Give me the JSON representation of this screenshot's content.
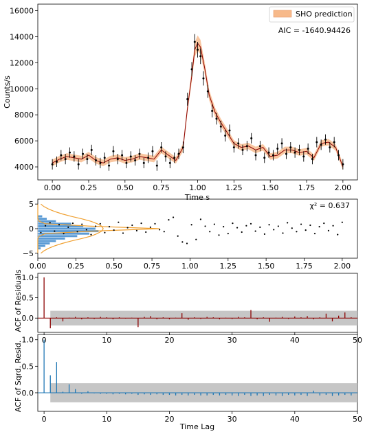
{
  "colors": {
    "model_line": "#8b0000",
    "model_band": "#f7b98a",
    "data_points": "#000000",
    "hist_fill": "#5b9bd5",
    "hist_lines": "#4a8ac4",
    "gaussian": "#f0a030",
    "acf_resid": "#8b0000",
    "acf_sq": "#1f77b4",
    "conf_band": "#c0c0c0"
  },
  "chart_data": [
    {
      "type": "scatter",
      "ylabel": "Counts/s",
      "xlabel": "Time s",
      "xlim": [
        -0.1,
        2.1
      ],
      "ylim": [
        3000,
        16500
      ],
      "x_ticks": [
        "0.00",
        "0.25",
        "0.50",
        "0.75",
        "1.00",
        "1.25",
        "1.50",
        "1.75",
        "2.00"
      ],
      "x_tick_values": [
        0,
        0.25,
        0.5,
        0.75,
        1.0,
        1.25,
        1.5,
        1.75,
        2.0
      ],
      "y_ticks": [
        "4000",
        "6000",
        "8000",
        "10000",
        "12000",
        "14000",
        "16000"
      ],
      "y_tick_values": [
        4000,
        6000,
        8000,
        10000,
        12000,
        14000,
        16000
      ],
      "legend": "SHO prediction",
      "annotation": "AIC = -1640.94426",
      "model": {
        "x": [
          0.0,
          0.05,
          0.1,
          0.15,
          0.2,
          0.25,
          0.3,
          0.35,
          0.4,
          0.45,
          0.5,
          0.55,
          0.6,
          0.65,
          0.7,
          0.75,
          0.8,
          0.85,
          0.9,
          0.93,
          0.96,
          0.98,
          1.0,
          1.02,
          1.05,
          1.08,
          1.12,
          1.16,
          1.2,
          1.25,
          1.3,
          1.35,
          1.4,
          1.45,
          1.5,
          1.55,
          1.6,
          1.65,
          1.7,
          1.75,
          1.8,
          1.85,
          1.9,
          1.95,
          2.0
        ],
        "y": [
          4300,
          4600,
          4800,
          4700,
          4600,
          4900,
          4500,
          4300,
          4600,
          4700,
          4500,
          4600,
          4800,
          4700,
          4600,
          5300,
          4900,
          4500,
          5500,
          8500,
          11000,
          13000,
          13500,
          13200,
          11500,
          9500,
          8200,
          7400,
          6700,
          5800,
          5500,
          5600,
          5300,
          5500,
          4800,
          4900,
          5300,
          5300,
          5100,
          5200,
          4700,
          5800,
          5900,
          5500,
          4000
        ],
        "band_halfwidth": [
          250,
          250,
          250,
          250,
          250,
          250,
          250,
          250,
          250,
          250,
          250,
          250,
          250,
          250,
          250,
          250,
          250,
          250,
          300,
          350,
          450,
          550,
          600,
          550,
          450,
          400,
          350,
          300,
          300,
          250,
          250,
          250,
          250,
          250,
          250,
          250,
          250,
          250,
          250,
          250,
          250,
          250,
          250,
          250,
          250
        ]
      },
      "observations": {
        "x": [
          0.0,
          0.03,
          0.06,
          0.09,
          0.12,
          0.15,
          0.18,
          0.21,
          0.24,
          0.27,
          0.3,
          0.33,
          0.36,
          0.39,
          0.42,
          0.45,
          0.48,
          0.51,
          0.54,
          0.57,
          0.6,
          0.63,
          0.66,
          0.69,
          0.72,
          0.75,
          0.78,
          0.81,
          0.84,
          0.87,
          0.9,
          0.93,
          0.96,
          0.98,
          1.0,
          1.02,
          1.04,
          1.07,
          1.1,
          1.13,
          1.16,
          1.19,
          1.22,
          1.25,
          1.28,
          1.31,
          1.34,
          1.37,
          1.4,
          1.43,
          1.46,
          1.49,
          1.52,
          1.55,
          1.58,
          1.61,
          1.64,
          1.67,
          1.7,
          1.73,
          1.76,
          1.79,
          1.82,
          1.85,
          1.88,
          1.91,
          1.94,
          1.97,
          2.0
        ],
        "y": [
          4200,
          4400,
          4900,
          4600,
          5100,
          4800,
          4200,
          5000,
          4600,
          5300,
          4500,
          4300,
          4700,
          4100,
          5200,
          4600,
          4900,
          4300,
          4800,
          4500,
          5000,
          4300,
          4700,
          5200,
          4100,
          5500,
          4800,
          4300,
          4700,
          5000,
          5500,
          9200,
          11500,
          13600,
          13000,
          12500,
          10800,
          9800,
          8300,
          7700,
          7100,
          6400,
          6800,
          5500,
          5800,
          5300,
          5600,
          6200,
          4900,
          5600,
          4700,
          5100,
          4900,
          5400,
          5800,
          5000,
          5500,
          5100,
          5300,
          4800,
          5400,
          4600,
          5900,
          5700,
          6100,
          5500,
          5900,
          4900,
          4200
        ],
        "err": [
          400,
          400,
          400,
          400,
          400,
          400,
          400,
          400,
          400,
          400,
          400,
          400,
          400,
          400,
          400,
          400,
          400,
          400,
          400,
          400,
          400,
          400,
          400,
          400,
          400,
          400,
          400,
          400,
          400,
          400,
          450,
          500,
          550,
          600,
          600,
          600,
          550,
          500,
          500,
          450,
          450,
          450,
          450,
          400,
          400,
          400,
          400,
          400,
          400,
          400,
          400,
          400,
          400,
          400,
          400,
          400,
          400,
          400,
          400,
          400,
          400,
          400,
          400,
          400,
          400,
          400,
          400,
          400,
          400
        ]
      }
    },
    {
      "type": "scatter",
      "xlim": [
        0,
        2.1
      ],
      "ylim": [
        -6,
        6
      ],
      "x_ticks": [
        "0.00",
        "0.25",
        "0.50",
        "0.75",
        "1.00",
        "1.25",
        "1.50",
        "1.75",
        "2.00"
      ],
      "x_tick_values": [
        0,
        0.25,
        0.5,
        0.75,
        1.0,
        1.25,
        1.5,
        1.75,
        2.0
      ],
      "y_ticks": [
        "5",
        "0",
        "−5"
      ],
      "y_tick_values": [
        5,
        0,
        -5
      ],
      "annotation": "χ² = 0.637",
      "residuals": {
        "x": [
          0.02,
          0.05,
          0.08,
          0.11,
          0.14,
          0.17,
          0.2,
          0.23,
          0.26,
          0.29,
          0.32,
          0.35,
          0.38,
          0.41,
          0.44,
          0.47,
          0.5,
          0.53,
          0.56,
          0.59,
          0.62,
          0.65,
          0.68,
          0.71,
          0.74,
          0.77,
          0.8,
          0.83,
          0.86,
          0.89,
          0.92,
          0.95,
          0.98,
          1.01,
          1.04,
          1.07,
          1.1,
          1.13,
          1.16,
          1.19,
          1.22,
          1.25,
          1.28,
          1.31,
          1.34,
          1.37,
          1.4,
          1.43,
          1.46,
          1.49,
          1.52,
          1.55,
          1.58,
          1.61,
          1.64,
          1.67,
          1.7,
          1.73,
          1.76,
          1.79,
          1.82,
          1.85,
          1.88,
          1.91,
          1.94,
          1.97,
          2.0
        ],
        "y": [
          -0.8,
          0.6,
          1.2,
          -0.5,
          0.8,
          -1.0,
          0.3,
          1.1,
          -0.6,
          0.9,
          -0.2,
          -1.2,
          0.5,
          1.0,
          -0.8,
          0.4,
          -0.3,
          1.3,
          -0.9,
          0.2,
          0.7,
          -0.4,
          1.1,
          -0.7,
          0.3,
          1.0,
          -0.2,
          -0.6,
          1.8,
          2.3,
          -1.5,
          -2.7,
          -3.0,
          0.8,
          -2.2,
          1.9,
          0.5,
          -0.6,
          0.9,
          -1.3,
          0.4,
          -1.0,
          1.1,
          0.2,
          -0.7,
          0.6,
          1.0,
          -0.5,
          0.3,
          -1.1,
          0.8,
          -0.2,
          0.5,
          -0.9,
          1.2,
          0.1,
          -0.6,
          0.9,
          -0.3,
          0.7,
          -1.0,
          0.4,
          1.1,
          -0.4,
          0.6,
          -1.2,
          1.3
        ]
      },
      "histogram": {
        "bin_centers": [
          -4.0,
          -3.5,
          -3.0,
          -2.5,
          -2.0,
          -1.5,
          -1.0,
          -0.5,
          0.0,
          0.5,
          1.0,
          1.5,
          2.0,
          2.5
        ],
        "density": [
          0.02,
          0.05,
          0.08,
          0.12,
          0.18,
          0.26,
          0.34,
          0.4,
          0.38,
          0.3,
          0.22,
          0.12,
          0.06,
          0.03
        ]
      },
      "gaussian": {
        "y": [
          -5,
          -4.5,
          -4,
          -3.5,
          -3,
          -2.5,
          -2,
          -1.5,
          -1,
          -0.5,
          0,
          0.5,
          1,
          1.5,
          2,
          2.5,
          3,
          3.5,
          4,
          4.5,
          5
        ],
        "broad_x": [
          0.02,
          0.04,
          0.07,
          0.11,
          0.16,
          0.22,
          0.29,
          0.35,
          0.39,
          0.42,
          0.43,
          0.42,
          0.39,
          0.35,
          0.29,
          0.22,
          0.16,
          0.11,
          0.07,
          0.04,
          0.02
        ],
        "narrow_x": [
          0.0,
          0.0,
          0.0,
          0.0,
          0.0,
          0.0,
          0.0,
          0.01,
          0.05,
          0.35,
          0.8,
          0.35,
          0.05,
          0.01,
          0.0,
          0.0,
          0.0,
          0.0,
          0.0,
          0.0,
          0.0
        ]
      }
    },
    {
      "type": "bar",
      "ylabel": "ACF of Residuals",
      "xlim": [
        -1,
        50
      ],
      "ylim": [
        -0.35,
        1.1
      ],
      "x_ticks": [
        "0",
        "10",
        "20",
        "30",
        "40",
        "50"
      ],
      "x_tick_values": [
        0,
        10,
        20,
        30,
        40,
        50
      ],
      "y_ticks": [
        "1.0",
        "0.5",
        "0.0"
      ],
      "y_tick_values": [
        1.0,
        0.5,
        0.0
      ],
      "conf_band": 0.18,
      "lags": [
        0,
        1,
        2,
        3,
        4,
        5,
        6,
        7,
        8,
        9,
        10,
        11,
        12,
        13,
        14,
        15,
        16,
        17,
        18,
        19,
        20,
        21,
        22,
        23,
        24,
        25,
        26,
        27,
        28,
        29,
        30,
        31,
        32,
        33,
        34,
        35,
        36,
        37,
        38,
        39,
        40,
        41,
        42,
        43,
        44,
        45,
        46,
        47,
        48,
        49
      ],
      "values": [
        1.0,
        -0.25,
        0.02,
        -0.08,
        0.01,
        0.03,
        -0.03,
        0.02,
        -0.02,
        0.03,
        0.02,
        -0.03,
        0.02,
        -0.01,
        0.01,
        -0.22,
        0.03,
        0.05,
        -0.03,
        0.02,
        -0.03,
        0.01,
        0.12,
        -0.04,
        0.02,
        -0.02,
        0.03,
        0.02,
        -0.03,
        0.01,
        -0.02,
        0.03,
        0.02,
        0.2,
        -0.03,
        0.02,
        -0.09,
        0.01,
        0.03,
        -0.02,
        0.04,
        0.02,
        0.05,
        -0.03,
        0.02,
        0.11,
        -0.08,
        0.06,
        0.14,
        0.02
      ]
    },
    {
      "type": "bar",
      "ylabel": "ACF of Sqrd. Resid.",
      "xlabel": "Time Lag",
      "xlim": [
        -1,
        50
      ],
      "ylim": [
        -0.35,
        1.1
      ],
      "x_ticks": [
        "0",
        "10",
        "20",
        "30",
        "40",
        "50"
      ],
      "x_tick_values": [
        0,
        10,
        20,
        30,
        40,
        50
      ],
      "y_ticks": [
        "1.0",
        "0.5",
        "0.0"
      ],
      "y_tick_values": [
        1.0,
        0.5,
        0.0
      ],
      "conf_band": 0.18,
      "lags": [
        0,
        1,
        2,
        3,
        4,
        5,
        6,
        7,
        8,
        9,
        10,
        11,
        12,
        13,
        14,
        15,
        16,
        17,
        18,
        19,
        20,
        21,
        22,
        23,
        24,
        25,
        26,
        27,
        28,
        29,
        30,
        31,
        32,
        33,
        34,
        35,
        36,
        37,
        38,
        39,
        40,
        41,
        42,
        43,
        44,
        45,
        46,
        47,
        48,
        49
      ],
      "values": [
        1.0,
        0.33,
        0.58,
        0.02,
        0.16,
        0.07,
        -0.02,
        0.03,
        -0.01,
        -0.02,
        -0.02,
        -0.03,
        -0.02,
        -0.03,
        -0.02,
        -0.04,
        -0.03,
        -0.04,
        -0.03,
        -0.04,
        -0.04,
        -0.05,
        -0.04,
        -0.05,
        -0.04,
        -0.05,
        -0.05,
        -0.04,
        -0.05,
        -0.04,
        -0.05,
        -0.06,
        -0.04,
        -0.06,
        -0.05,
        -0.06,
        -0.04,
        -0.05,
        -0.06,
        -0.04,
        -0.05,
        -0.04,
        -0.06,
        0.04,
        -0.05,
        -0.04,
        -0.06,
        -0.05,
        -0.04,
        -0.05
      ]
    }
  ]
}
